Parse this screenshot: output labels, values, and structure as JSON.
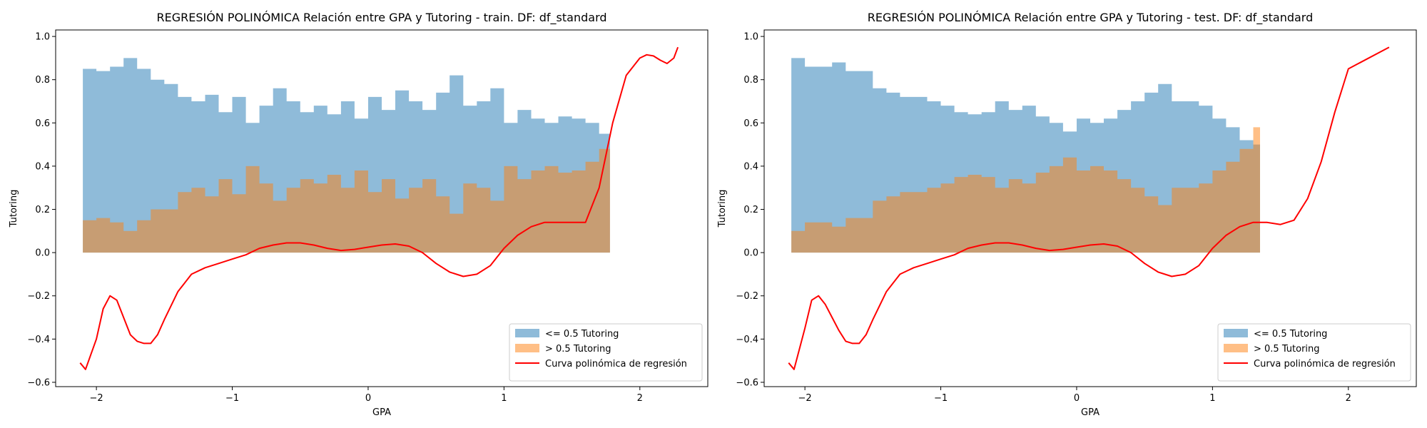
{
  "chart_data": [
    {
      "type": "area",
      "title": "REGRESIÓN POLINÓMICA Relación entre GPA y Tutoring - train. DF: df_standard",
      "xlabel": "GPA",
      "ylabel": "Tutoring",
      "xlim": [
        -2.3,
        2.5
      ],
      "ylim": [
        -0.62,
        1.03
      ],
      "xticks": [
        -2,
        -1,
        0,
        1,
        2
      ],
      "xtick_labels": [
        "−2",
        "−1",
        "0",
        "1",
        "2"
      ],
      "yticks": [
        -0.6,
        -0.4,
        -0.2,
        0.0,
        0.2,
        0.4,
        0.6,
        0.8,
        1.0
      ],
      "ytick_labels": [
        "−0.6",
        "−0.4",
        "−0.2",
        "0.0",
        "0.2",
        "0.4",
        "0.6",
        "0.8",
        "1.0"
      ],
      "grid": false,
      "legend": "lower-right",
      "series": [
        {
          "name": "<= 0.5 Tutoring",
          "kind": "area",
          "color": "#1f77b4",
          "opacity": 0.5,
          "x": [
            -2.1,
            -2.0,
            -1.9,
            -1.8,
            -1.7,
            -1.6,
            -1.5,
            -1.4,
            -1.3,
            -1.2,
            -1.1,
            -1.0,
            -0.9,
            -0.8,
            -0.7,
            -0.6,
            -0.5,
            -0.4,
            -0.3,
            -0.2,
            -0.1,
            0.0,
            0.1,
            0.2,
            0.3,
            0.4,
            0.5,
            0.6,
            0.7,
            0.8,
            0.9,
            1.0,
            1.1,
            1.2,
            1.3,
            1.4,
            1.5,
            1.6,
            1.7,
            1.78
          ],
          "y": [
            0.85,
            0.84,
            0.86,
            0.9,
            0.85,
            0.8,
            0.78,
            0.72,
            0.7,
            0.73,
            0.65,
            0.72,
            0.6,
            0.68,
            0.76,
            0.7,
            0.65,
            0.68,
            0.64,
            0.7,
            0.62,
            0.72,
            0.66,
            0.75,
            0.7,
            0.66,
            0.74,
            0.82,
            0.68,
            0.7,
            0.76,
            0.6,
            0.66,
            0.62,
            0.6,
            0.63,
            0.62,
            0.6,
            0.55,
            0.58
          ]
        },
        {
          "name": "> 0.5 Tutoring",
          "kind": "area",
          "color": "#ff7f0e",
          "opacity": 0.5,
          "x": [
            -2.1,
            -2.0,
            -1.9,
            -1.8,
            -1.7,
            -1.6,
            -1.5,
            -1.4,
            -1.3,
            -1.2,
            -1.1,
            -1.0,
            -0.9,
            -0.8,
            -0.7,
            -0.6,
            -0.5,
            -0.4,
            -0.3,
            -0.2,
            -0.1,
            0.0,
            0.1,
            0.2,
            0.3,
            0.4,
            0.5,
            0.6,
            0.7,
            0.8,
            0.9,
            1.0,
            1.1,
            1.2,
            1.3,
            1.4,
            1.5,
            1.6,
            1.7,
            1.78
          ],
          "y": [
            0.15,
            0.16,
            0.14,
            0.1,
            0.15,
            0.2,
            0.2,
            0.28,
            0.3,
            0.26,
            0.34,
            0.27,
            0.4,
            0.32,
            0.24,
            0.3,
            0.34,
            0.32,
            0.36,
            0.3,
            0.38,
            0.28,
            0.34,
            0.25,
            0.3,
            0.34,
            0.26,
            0.18,
            0.32,
            0.3,
            0.24,
            0.4,
            0.34,
            0.38,
            0.4,
            0.37,
            0.38,
            0.42,
            0.48,
            0.62
          ]
        },
        {
          "name": "Curva polinómica de regresión",
          "kind": "line",
          "color": "#ff0000",
          "x": [
            -2.12,
            -2.08,
            -2.0,
            -1.95,
            -1.9,
            -1.85,
            -1.8,
            -1.75,
            -1.7,
            -1.65,
            -1.6,
            -1.55,
            -1.5,
            -1.4,
            -1.3,
            -1.2,
            -1.1,
            -1.0,
            -0.9,
            -0.8,
            -0.7,
            -0.6,
            -0.5,
            -0.4,
            -0.3,
            -0.2,
            -0.1,
            0.0,
            0.1,
            0.2,
            0.3,
            0.4,
            0.5,
            0.6,
            0.7,
            0.8,
            0.9,
            1.0,
            1.1,
            1.2,
            1.3,
            1.4,
            1.5,
            1.6,
            1.7,
            1.8,
            1.9,
            2.0,
            2.05,
            2.1,
            2.15,
            2.2,
            2.25,
            2.28
          ],
          "y": [
            -0.51,
            -0.54,
            -0.4,
            -0.26,
            -0.2,
            -0.22,
            -0.3,
            -0.38,
            -0.41,
            -0.42,
            -0.42,
            -0.38,
            -0.31,
            -0.18,
            -0.1,
            -0.07,
            -0.05,
            -0.03,
            -0.01,
            0.02,
            0.035,
            0.045,
            0.045,
            0.035,
            0.02,
            0.01,
            0.015,
            0.025,
            0.035,
            0.04,
            0.03,
            0.0,
            -0.05,
            -0.09,
            -0.11,
            -0.1,
            -0.06,
            0.02,
            0.08,
            0.12,
            0.14,
            0.14,
            0.14,
            0.14,
            0.3,
            0.6,
            0.82,
            0.9,
            0.915,
            0.91,
            0.89,
            0.875,
            0.9,
            0.95
          ]
        }
      ]
    },
    {
      "type": "area",
      "title": "REGRESIÓN POLINÓMICA Relación entre GPA y Tutoring - test. DF: df_standard",
      "xlabel": "GPA",
      "ylabel": "Tutoring",
      "xlim": [
        -2.3,
        2.5
      ],
      "ylim": [
        -0.62,
        1.03
      ],
      "xticks": [
        -2,
        -1,
        0,
        1,
        2
      ],
      "xtick_labels": [
        "−2",
        "−1",
        "0",
        "1",
        "2"
      ],
      "yticks": [
        -0.6,
        -0.4,
        -0.2,
        0.0,
        0.2,
        0.4,
        0.6,
        0.8,
        1.0
      ],
      "ytick_labels": [
        "−0.6",
        "−0.4",
        "−0.2",
        "0.0",
        "0.2",
        "0.4",
        "0.6",
        "0.8",
        "1.0"
      ],
      "grid": false,
      "legend": "lower-right",
      "series": [
        {
          "name": "<= 0.5 Tutoring",
          "kind": "area",
          "color": "#1f77b4",
          "opacity": 0.5,
          "x": [
            -2.1,
            -2.0,
            -1.9,
            -1.8,
            -1.7,
            -1.6,
            -1.5,
            -1.4,
            -1.3,
            -1.2,
            -1.1,
            -1.0,
            -0.9,
            -0.8,
            -0.7,
            -0.6,
            -0.5,
            -0.4,
            -0.3,
            -0.2,
            -0.1,
            0.0,
            0.1,
            0.2,
            0.3,
            0.4,
            0.5,
            0.6,
            0.7,
            0.8,
            0.9,
            1.0,
            1.1,
            1.2,
            1.3,
            1.35
          ],
          "y": [
            0.9,
            0.86,
            0.86,
            0.88,
            0.84,
            0.84,
            0.76,
            0.74,
            0.72,
            0.72,
            0.7,
            0.68,
            0.65,
            0.64,
            0.65,
            0.7,
            0.66,
            0.68,
            0.63,
            0.6,
            0.56,
            0.62,
            0.6,
            0.62,
            0.66,
            0.7,
            0.74,
            0.78,
            0.7,
            0.7,
            0.68,
            0.62,
            0.58,
            0.52,
            0.5,
            0.48
          ]
        },
        {
          "name": "> 0.5 Tutoring",
          "kind": "area",
          "color": "#ff7f0e",
          "opacity": 0.5,
          "x": [
            -2.1,
            -2.0,
            -1.9,
            -1.8,
            -1.7,
            -1.6,
            -1.5,
            -1.4,
            -1.3,
            -1.2,
            -1.1,
            -1.0,
            -0.9,
            -0.8,
            -0.7,
            -0.6,
            -0.5,
            -0.4,
            -0.3,
            -0.2,
            -0.1,
            0.0,
            0.1,
            0.2,
            0.3,
            0.4,
            0.5,
            0.6,
            0.7,
            0.8,
            0.9,
            1.0,
            1.1,
            1.2,
            1.3,
            1.35
          ],
          "y": [
            0.1,
            0.14,
            0.14,
            0.12,
            0.16,
            0.16,
            0.24,
            0.26,
            0.28,
            0.28,
            0.3,
            0.32,
            0.35,
            0.36,
            0.35,
            0.3,
            0.34,
            0.32,
            0.37,
            0.4,
            0.44,
            0.38,
            0.4,
            0.38,
            0.34,
            0.3,
            0.26,
            0.22,
            0.3,
            0.3,
            0.32,
            0.38,
            0.42,
            0.48,
            0.58,
            0.54
          ]
        },
        {
          "name": "Curva polinómica de regresión",
          "kind": "line",
          "color": "#ff0000",
          "x": [
            -2.12,
            -2.08,
            -2.0,
            -1.95,
            -1.9,
            -1.85,
            -1.8,
            -1.75,
            -1.7,
            -1.65,
            -1.6,
            -1.55,
            -1.5,
            -1.4,
            -1.3,
            -1.2,
            -1.1,
            -1.0,
            -0.9,
            -0.8,
            -0.7,
            -0.6,
            -0.5,
            -0.4,
            -0.3,
            -0.2,
            -0.1,
            0.0,
            0.1,
            0.2,
            0.3,
            0.4,
            0.5,
            0.6,
            0.7,
            0.8,
            0.9,
            1.0,
            1.1,
            1.2,
            1.3,
            1.4,
            1.5,
            1.6,
            1.7,
            1.8,
            1.9,
            2.0,
            2.3
          ],
          "y": [
            -0.51,
            -0.54,
            -0.35,
            -0.22,
            -0.2,
            -0.24,
            -0.3,
            -0.36,
            -0.41,
            -0.42,
            -0.42,
            -0.38,
            -0.31,
            -0.18,
            -0.1,
            -0.07,
            -0.05,
            -0.03,
            -0.01,
            0.02,
            0.035,
            0.045,
            0.045,
            0.035,
            0.02,
            0.01,
            0.015,
            0.025,
            0.035,
            0.04,
            0.03,
            0.0,
            -0.05,
            -0.09,
            -0.11,
            -0.1,
            -0.06,
            0.02,
            0.08,
            0.12,
            0.14,
            0.14,
            0.13,
            0.15,
            0.25,
            0.42,
            0.65,
            0.85,
            0.95
          ]
        }
      ]
    }
  ]
}
